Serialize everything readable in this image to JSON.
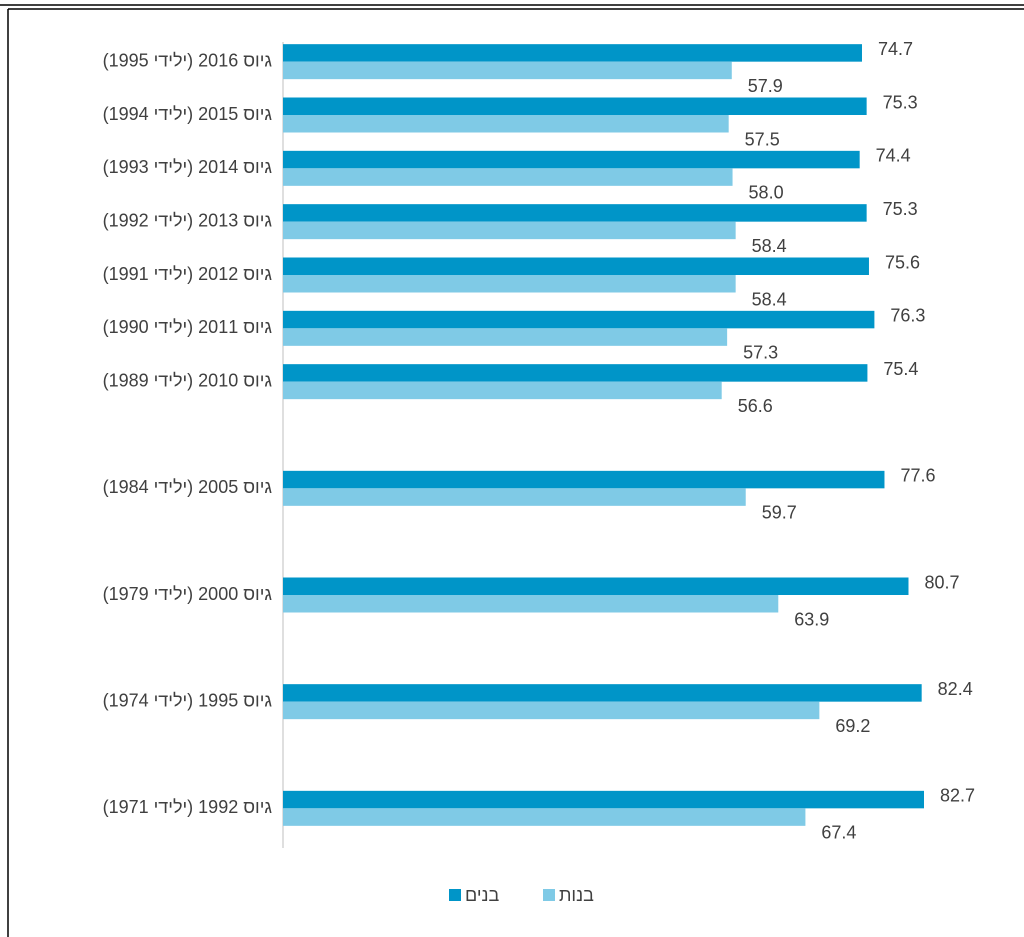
{
  "chart_data": {
    "type": "hbar",
    "categories": [
      "גיוס 2016 (ילידי 1995)",
      "גיוס 2015 (ילידי 1994)",
      "גיוס 2014 (ילידי 1993)",
      "גיוס 2013 (ילידי 1992)",
      "גיוס 2012 (ילידי 1991)",
      "גיוס 2011 (ילידי 1990)",
      "גיוס 2010 (ילידי 1989)",
      null,
      "גיוס 2005 (ילידי 1984)",
      null,
      "גיוס 2000 (ילידי 1979)",
      null,
      "גיוס 1995 (ילידי 1974)",
      null,
      "גיוס 1992 (ילידי 1971)"
    ],
    "series": [
      {
        "name": "בנים",
        "color": "#0095c8",
        "values": [
          74.7,
          75.3,
          74.4,
          75.3,
          75.6,
          76.3,
          75.4,
          null,
          77.6,
          null,
          80.7,
          null,
          82.4,
          null,
          82.7
        ],
        "value_labels": [
          "74.7",
          "75.3",
          "74.4",
          "75.3",
          "75.6",
          "76.3",
          "75.4",
          null,
          "77.6",
          null,
          "80.7",
          null,
          "82.4",
          null,
          "82.7"
        ]
      },
      {
        "name": "בנות",
        "color": "#7fcae6",
        "values": [
          57.9,
          57.5,
          58.0,
          58.4,
          58.4,
          57.3,
          56.6,
          null,
          59.7,
          null,
          63.9,
          null,
          69.2,
          null,
          67.4
        ],
        "value_labels": [
          "57.9",
          "57.5",
          "58.0",
          "58.4",
          "58.4",
          "57.3",
          "56.6",
          null,
          "59.7",
          null,
          "63.9",
          null,
          "69.2",
          null,
          "67.4"
        ]
      }
    ],
    "legend": "bottom"
  }
}
